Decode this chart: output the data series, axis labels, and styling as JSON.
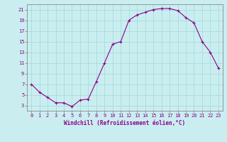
{
  "x": [
    0,
    1,
    2,
    3,
    4,
    5,
    6,
    7,
    8,
    9,
    10,
    11,
    12,
    13,
    14,
    15,
    16,
    17,
    18,
    19,
    20,
    21,
    22,
    23
  ],
  "y": [
    7.0,
    5.5,
    4.5,
    3.5,
    3.5,
    2.8,
    4.0,
    4.2,
    7.5,
    11.0,
    14.5,
    15.0,
    19.0,
    20.0,
    20.5,
    21.0,
    21.2,
    21.2,
    20.8,
    19.5,
    18.5,
    15.0,
    13.0,
    10.0
  ],
  "line_color": "#8B008B",
  "marker": "+",
  "marker_size": 3,
  "bg_color": "#caeef0",
  "grid_color": "#a0d8d8",
  "xlabel": "Windchill (Refroidissement éolien,°C)",
  "xlim": [
    -0.5,
    23.5
  ],
  "ylim": [
    2.0,
    22.0
  ],
  "xticks": [
    0,
    1,
    2,
    3,
    4,
    5,
    6,
    7,
    8,
    9,
    10,
    11,
    12,
    13,
    14,
    15,
    16,
    17,
    18,
    19,
    20,
    21,
    22,
    23
  ],
  "yticks": [
    3,
    5,
    7,
    9,
    11,
    13,
    15,
    17,
    19,
    21
  ],
  "label_fontsize": 5.5,
  "tick_fontsize": 5.0
}
